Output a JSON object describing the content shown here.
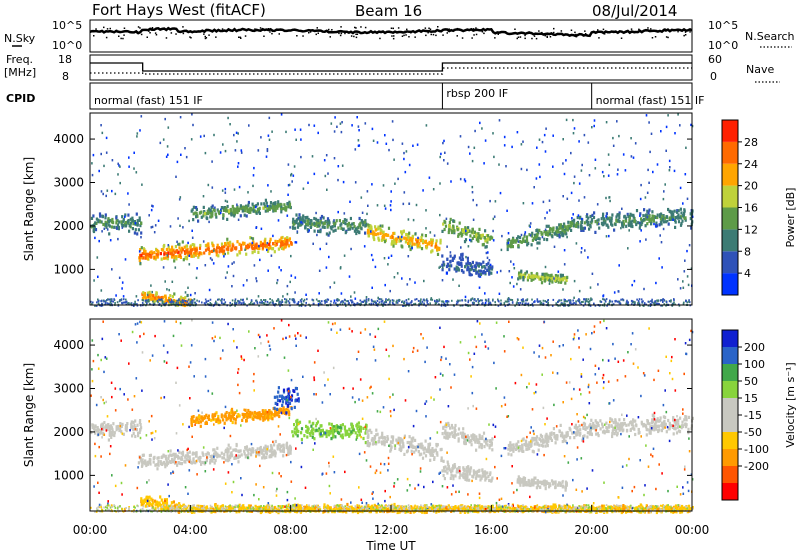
{
  "header": {
    "title": "Fort Hays West (fitACF)",
    "beam": "Beam 16",
    "date": "08/Jul/2014"
  },
  "top_panels": {
    "nsky_label": "N.Sky",
    "nsearch_label": "N.Search",
    "nsky_ticks": [
      "10^5",
      "10^0"
    ],
    "freq_label": "Freq.",
    "freq_unit": "[MHz]",
    "freq_ticks": [
      "18",
      "8"
    ],
    "nave_label": "Nave",
    "nave_ticks": [
      "60",
      "0"
    ],
    "cpid_label": "CPID",
    "cpid_segments": [
      {
        "label": "normal (fast) 151 IF",
        "start_hour": 0,
        "end_hour": 14.05
      },
      {
        "label": "rbsp 200 IF",
        "start_hour": 14.05,
        "end_hour": 20.0
      },
      {
        "label": "normal (fast) 151 IF",
        "start_hour": 20.0,
        "end_hour": 24.0
      }
    ]
  },
  "colors": {
    "power_scale": [
      "#0033ff",
      "#2f52b8",
      "#3c7b74",
      "#5e9b48",
      "#bfd23a",
      "#ffa500",
      "#ff6a00",
      "#ff2000"
    ],
    "velocity_scale": [
      "#ff0000",
      "#ff5500",
      "#ff9a00",
      "#ffc800",
      "#c8c8c0",
      "#c8c8c0",
      "#88d43c",
      "#41a84a",
      "#2a64c8",
      "#1020d0"
    ]
  },
  "chart_data": [
    {
      "type": "heatmap",
      "name": "power",
      "ylabel": "Slant Range [km]",
      "yticks": [
        1000,
        2000,
        3000,
        4000
      ],
      "ylim": [
        180,
        4600
      ],
      "xlim": [
        0,
        24
      ],
      "colorbar": {
        "label": "Power [dB]",
        "ticks": [
          4,
          8,
          12,
          16,
          20,
          24,
          28
        ],
        "range": [
          0,
          32
        ]
      },
      "echo_bands": [
        {
          "t_start": 0.0,
          "t_end": 2.0,
          "r_start": 2100,
          "r_end": 2100,
          "width": 300,
          "power": 12
        },
        {
          "t_start": 1.9,
          "t_end": 8.0,
          "r_start": 1350,
          "r_end": 1650,
          "width": 250,
          "power": 26
        },
        {
          "t_start": 2.0,
          "t_end": 4.0,
          "r_start": 450,
          "r_end": 250,
          "width": 200,
          "power": 24
        },
        {
          "t_start": 4.0,
          "t_end": 8.0,
          "r_start": 2300,
          "r_end": 2500,
          "width": 200,
          "power": 14
        },
        {
          "t_start": 8.0,
          "t_end": 11.0,
          "r_start": 2100,
          "r_end": 2050,
          "width": 300,
          "power": 12
        },
        {
          "t_start": 11.0,
          "t_end": 14.0,
          "r_start": 1900,
          "r_end": 1550,
          "width": 300,
          "power": 22
        },
        {
          "t_start": 14.0,
          "t_end": 16.0,
          "r_start": 2100,
          "r_end": 1700,
          "width": 300,
          "power": 16
        },
        {
          "t_start": 14.0,
          "t_end": 16.0,
          "r_start": 1200,
          "r_end": 1000,
          "width": 300,
          "power": 8
        },
        {
          "t_start": 16.6,
          "t_end": 19.5,
          "r_start": 1600,
          "r_end": 2100,
          "width": 250,
          "power": 14
        },
        {
          "t_start": 17.0,
          "t_end": 19.0,
          "r_start": 900,
          "r_end": 800,
          "width": 150,
          "power": 18
        },
        {
          "t_start": 19.5,
          "t_end": 24.0,
          "r_start": 2100,
          "r_end": 2250,
          "width": 300,
          "power": 12
        }
      ]
    },
    {
      "type": "heatmap",
      "name": "velocity",
      "ylabel": "Slant Range [km]",
      "xlabel": "Time UT",
      "yticks": [
        1000,
        2000,
        3000,
        4000
      ],
      "ylim": [
        180,
        4600
      ],
      "xlim": [
        0,
        24
      ],
      "xticks": [
        "00:00",
        "04:00",
        "08:00",
        "12:00",
        "16:00",
        "20:00",
        "00:00"
      ],
      "colorbar": {
        "label": "Velocity [m s⁻¹]",
        "ticks": [
          200,
          100,
          50,
          15,
          -15,
          -50,
          -100,
          -200
        ],
        "range": [
          -250,
          250
        ]
      },
      "echo_bands": [
        {
          "t_start": 0.0,
          "t_end": 2.0,
          "r_start": 2100,
          "r_end": 2100,
          "width": 300,
          "velocity": 0
        },
        {
          "t_start": 1.9,
          "t_end": 8.0,
          "r_start": 1350,
          "r_end": 1650,
          "width": 250,
          "velocity": 0
        },
        {
          "t_start": 2.0,
          "t_end": 4.0,
          "r_start": 450,
          "r_end": 250,
          "width": 200,
          "velocity": -40
        },
        {
          "t_start": 4.0,
          "t_end": 8.0,
          "r_start": 2300,
          "r_end": 2500,
          "width": 200,
          "velocity": -60
        },
        {
          "t_start": 7.3,
          "t_end": 8.3,
          "r_start": 2800,
          "r_end": 2800,
          "width": 400,
          "velocity": 200
        },
        {
          "t_start": 8.0,
          "t_end": 11.0,
          "r_start": 2100,
          "r_end": 2050,
          "width": 300,
          "velocity": 40
        },
        {
          "t_start": 11.0,
          "t_end": 14.0,
          "r_start": 1900,
          "r_end": 1550,
          "width": 300,
          "velocity": 0
        },
        {
          "t_start": 14.0,
          "t_end": 16.0,
          "r_start": 2100,
          "r_end": 1700,
          "width": 300,
          "velocity": 0
        },
        {
          "t_start": 14.0,
          "t_end": 16.0,
          "r_start": 1200,
          "r_end": 1000,
          "width": 300,
          "velocity": 0
        },
        {
          "t_start": 16.6,
          "t_end": 19.5,
          "r_start": 1600,
          "r_end": 2100,
          "width": 250,
          "velocity": 0
        },
        {
          "t_start": 17.0,
          "t_end": 19.0,
          "r_start": 900,
          "r_end": 800,
          "width": 150,
          "velocity": 0
        },
        {
          "t_start": 19.5,
          "t_end": 24.0,
          "r_start": 2100,
          "r_end": 2250,
          "width": 300,
          "velocity": 0
        },
        {
          "t_start": 4.0,
          "t_end": 24.0,
          "r_start": 260,
          "r_end": 260,
          "width": 120,
          "velocity": -40
        }
      ]
    }
  ]
}
